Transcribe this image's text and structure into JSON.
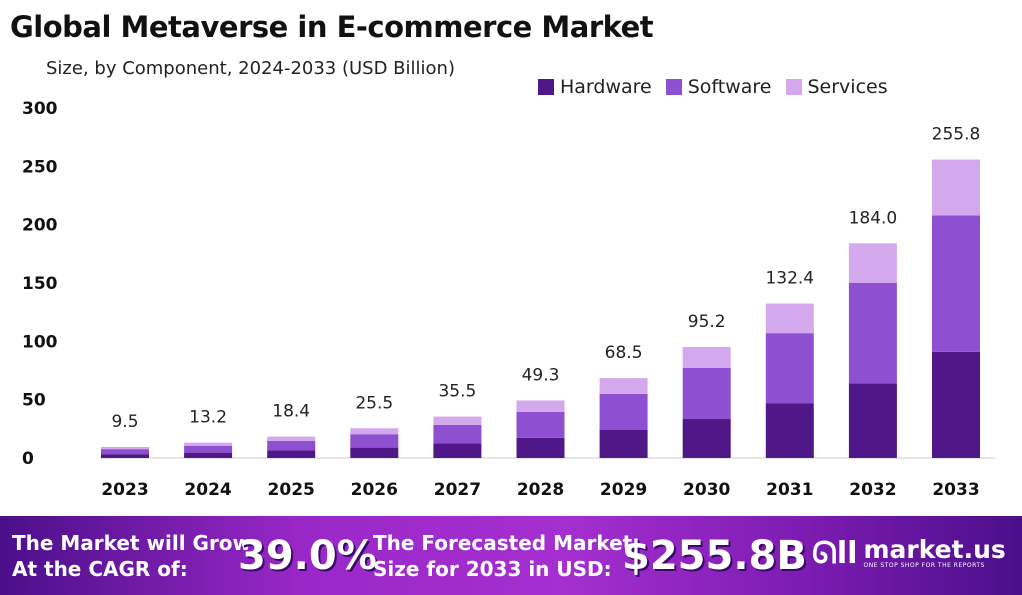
{
  "chart_data": {
    "type": "bar",
    "stacked": true,
    "title": "Global Metaverse in E-commerce Market",
    "subtitle": "Size, by Component, 2024-2033 (USD Billion)",
    "categories": [
      "2023",
      "2024",
      "2025",
      "2026",
      "2027",
      "2028",
      "2029",
      "2030",
      "2031",
      "2032",
      "2033"
    ],
    "series": [
      {
        "name": "Hardware",
        "color": "#4f1787",
        "values": [
          3.3,
          4.6,
          6.4,
          8.9,
          12.4,
          17.3,
          24.0,
          33.4,
          47.0,
          64.0,
          91.0
        ]
      },
      {
        "name": "Software",
        "color": "#8e4fd0",
        "values": [
          4.3,
          5.9,
          8.3,
          11.5,
          16.0,
          22.2,
          31.0,
          43.8,
          60.0,
          86.0,
          117.0
        ]
      },
      {
        "name": "Services",
        "color": "#d4a8ec",
        "values": [
          1.9,
          2.7,
          3.7,
          5.1,
          7.1,
          9.8,
          13.5,
          18.0,
          25.4,
          34.0,
          47.8
        ]
      }
    ],
    "totals": [
      "9.5",
      "13.2",
      "18.4",
      "25.5",
      "35.5",
      "49.3",
      "68.5",
      "95.2",
      "132.4",
      "184.0",
      "255.8"
    ],
    "yticks": [
      "0",
      "50",
      "100",
      "150",
      "200",
      "250",
      "300"
    ],
    "ylim": [
      0,
      300
    ],
    "grid": false,
    "legend": "top-right"
  },
  "footer": {
    "cagr_label_1": "The Market will Grow",
    "cagr_label_2": "At the CAGR of:",
    "cagr_value": "39.0%",
    "forecast_label_1": "The Forecasted Market",
    "forecast_label_2": "Size for 2033 in USD:",
    "forecast_value": "$255.8B",
    "logo_text": "market.us",
    "logo_tagline": "ONE STOP SHOP FOR THE REPORTS"
  }
}
